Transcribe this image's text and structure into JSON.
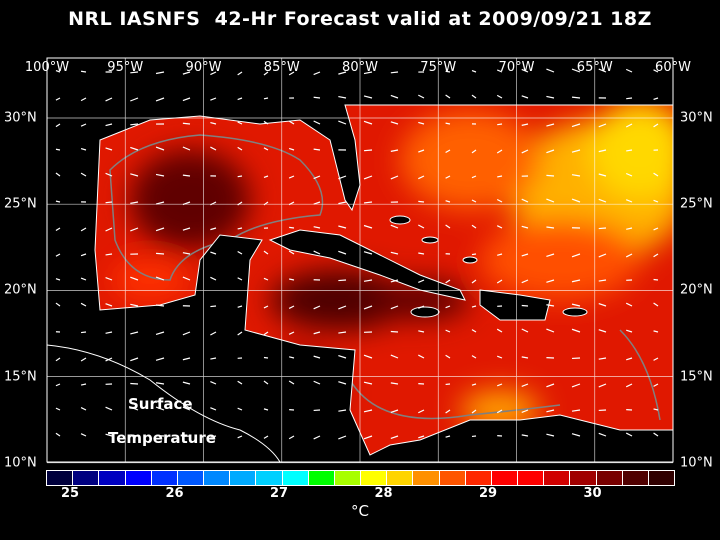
{
  "title": "NRL IASNFS  42-Hr Forecast valid at 2009/09/21 18Z",
  "lon_labels": [
    "100°W",
    "95°W",
    "90°W",
    "85°W",
    "80°W",
    "75°W",
    "70°W",
    "65°W",
    "60°W"
  ],
  "lat_labels": [
    "30°N",
    "25°N",
    "20°N",
    "15°N",
    "10°N"
  ],
  "map_labels": {
    "line1": "Surface",
    "line2": "Temperature"
  },
  "colorbar": {
    "colors": [
      "#00003c",
      "#000080",
      "#0000c0",
      "#0000ff",
      "#0030ff",
      "#0058ff",
      "#0088ff",
      "#00aaff",
      "#00d0ff",
      "#00ffff",
      "#00ff00",
      "#a8ff00",
      "#ffff00",
      "#ffd400",
      "#ff9000",
      "#ff5500",
      "#ff2800",
      "#ff0000",
      "#ff0000",
      "#d00000",
      "#a00000",
      "#780000",
      "#500000",
      "#300000"
    ],
    "labels": [
      "25",
      "26",
      "27",
      "28",
      "29",
      "30"
    ],
    "unit": "°C"
  }
}
